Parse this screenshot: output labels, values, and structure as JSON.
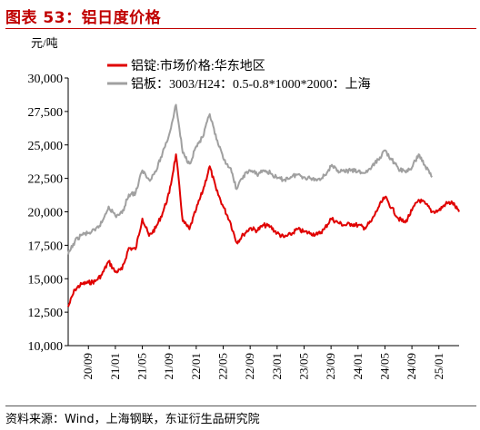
{
  "header": {
    "title": "图表 53：铝日度价格"
  },
  "footer": {
    "source": "资料来源：Wind，上海钢联，东证衍生品研究院"
  },
  "colors": {
    "accent": "#c00000",
    "series_red": "#e00000",
    "series_gray": "#a0a0a0"
  },
  "chart_data": {
    "type": "line",
    "unit_label": "元/吨",
    "ylim": [
      10000,
      30000
    ],
    "yticks": [
      10000,
      12500,
      15000,
      17500,
      20000,
      22500,
      25000,
      27500,
      30000
    ],
    "ytick_labels": [
      "10,000",
      "12,500",
      "15,000",
      "17,500",
      "20,000",
      "22,500",
      "25,000",
      "27,500",
      "30,000"
    ],
    "xlim": [
      "2020-06",
      "2025-04"
    ],
    "xtick_labels": [
      "20/09",
      "21/01",
      "21/05",
      "21/09",
      "22/01",
      "22/05",
      "22/09",
      "23/01",
      "23/05",
      "23/09",
      "24/01",
      "24/05",
      "24/09",
      "25/01"
    ],
    "legend_position": "top",
    "grid": false,
    "series": [
      {
        "name": "铝锭:市场价格:华东地区",
        "color": "#e00000",
        "points": [
          [
            "2020-06",
            12900
          ],
          [
            "2020-07",
            14200
          ],
          [
            "2020-08",
            14600
          ],
          [
            "2020-09",
            14700
          ],
          [
            "2020-10",
            14800
          ],
          [
            "2020-11",
            15300
          ],
          [
            "2020-12",
            16300
          ],
          [
            "2021-01",
            15500
          ],
          [
            "2021-02",
            15700
          ],
          [
            "2021-03",
            17300
          ],
          [
            "2021-04",
            17200
          ],
          [
            "2021-05",
            19500
          ],
          [
            "2021-06",
            18200
          ],
          [
            "2021-07",
            18800
          ],
          [
            "2021-08",
            19900
          ],
          [
            "2021-09",
            21400
          ],
          [
            "2021-10",
            24300
          ],
          [
            "2021-11",
            19300
          ],
          [
            "2021-12",
            18700
          ],
          [
            "2022-01",
            20200
          ],
          [
            "2022-02",
            21600
          ],
          [
            "2022-03",
            23400
          ],
          [
            "2022-04",
            21600
          ],
          [
            "2022-05",
            20400
          ],
          [
            "2022-06",
            19300
          ],
          [
            "2022-07",
            17700
          ],
          [
            "2022-08",
            18300
          ],
          [
            "2022-09",
            18800
          ],
          [
            "2022-10",
            18600
          ],
          [
            "2022-11",
            19000
          ],
          [
            "2022-12",
            18900
          ],
          [
            "2023-01",
            18400
          ],
          [
            "2023-02",
            18100
          ],
          [
            "2023-03",
            18300
          ],
          [
            "2023-04",
            18700
          ],
          [
            "2023-05",
            18500
          ],
          [
            "2023-06",
            18400
          ],
          [
            "2023-07",
            18300
          ],
          [
            "2023-08",
            18700
          ],
          [
            "2023-09",
            19500
          ],
          [
            "2023-10",
            19200
          ],
          [
            "2023-11",
            19000
          ],
          [
            "2023-12",
            19100
          ],
          [
            "2024-01",
            19000
          ],
          [
            "2024-02",
            18800
          ],
          [
            "2024-03",
            19300
          ],
          [
            "2024-04",
            20300
          ],
          [
            "2024-05",
            21100
          ],
          [
            "2024-06",
            20300
          ],
          [
            "2024-07",
            19500
          ],
          [
            "2024-08",
            19200
          ],
          [
            "2024-09",
            20100
          ],
          [
            "2024-10",
            20900
          ],
          [
            "2024-11",
            20600
          ],
          [
            "2024-12",
            20000
          ],
          [
            "2025-01",
            20100
          ],
          [
            "2025-02",
            20600
          ],
          [
            "2025-03",
            20700
          ],
          [
            "2025-04",
            20000
          ]
        ]
      },
      {
        "name": "铝板：3003/H24：0.5-0.8*1000*2000：上海",
        "color": "#a0a0a0",
        "points": [
          [
            "2020-06",
            16800
          ],
          [
            "2020-07",
            17800
          ],
          [
            "2020-08",
            18300
          ],
          [
            "2020-09",
            18400
          ],
          [
            "2020-10",
            18600
          ],
          [
            "2020-11",
            19200
          ],
          [
            "2020-12",
            20400
          ],
          [
            "2021-01",
            19700
          ],
          [
            "2021-02",
            19900
          ],
          [
            "2021-03",
            21300
          ],
          [
            "2021-04",
            21400
          ],
          [
            "2021-05",
            23100
          ],
          [
            "2021-06",
            22400
          ],
          [
            "2021-07",
            23000
          ],
          [
            "2021-08",
            24400
          ],
          [
            "2021-09",
            25800
          ],
          [
            "2021-10",
            28000
          ],
          [
            "2021-11",
            24400
          ],
          [
            "2021-12",
            23600
          ],
          [
            "2022-01",
            24900
          ],
          [
            "2022-02",
            25600
          ],
          [
            "2022-03",
            27300
          ],
          [
            "2022-04",
            25400
          ],
          [
            "2022-05",
            24000
          ],
          [
            "2022-06",
            23300
          ],
          [
            "2022-07",
            21700
          ],
          [
            "2022-08",
            22700
          ],
          [
            "2022-09",
            23100
          ],
          [
            "2022-10",
            22800
          ],
          [
            "2022-11",
            23100
          ],
          [
            "2022-12",
            22900
          ],
          [
            "2023-01",
            22500
          ],
          [
            "2023-02",
            22400
          ],
          [
            "2023-03",
            22600
          ],
          [
            "2023-04",
            22800
          ],
          [
            "2023-05",
            22600
          ],
          [
            "2023-06",
            22500
          ],
          [
            "2023-07",
            22400
          ],
          [
            "2023-08",
            22700
          ],
          [
            "2023-09",
            23400
          ],
          [
            "2023-10",
            23100
          ],
          [
            "2023-11",
            23000
          ],
          [
            "2023-12",
            23100
          ],
          [
            "2024-01",
            23000
          ],
          [
            "2024-02",
            22900
          ],
          [
            "2024-03",
            23300
          ],
          [
            "2024-04",
            23900
          ],
          [
            "2024-05",
            24600
          ],
          [
            "2024-06",
            23900
          ],
          [
            "2024-07",
            23200
          ],
          [
            "2024-08",
            23000
          ],
          [
            "2024-09",
            23300
          ],
          [
            "2024-10",
            24300
          ],
          [
            "2024-11",
            23400
          ],
          [
            "2024-12",
            22600
          ]
        ]
      }
    ]
  }
}
